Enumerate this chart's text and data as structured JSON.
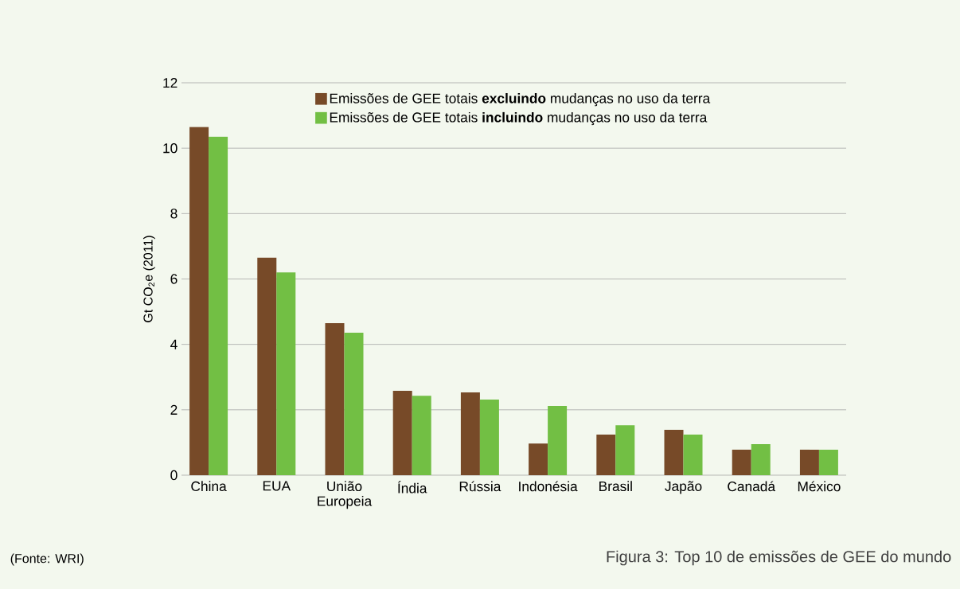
{
  "chart_data": {
    "type": "bar",
    "title": "Figura 3: Top 10 de emissões de GEE do mundo",
    "ylabel": "Gt CO$_{2}$e (2011)",
    "categories": [
      "China",
      "EUA",
      "União Europeia",
      "Índia",
      "Rússia",
      "Indonésia",
      "Brasil",
      "Japão",
      "Canadá",
      "México"
    ],
    "series": [
      {
        "name": "Emissões de GEE totais **excluindo** mudanças no uso da terra",
        "color": "#774a28",
        "values": [
          10.65,
          6.65,
          4.65,
          2.58,
          2.53,
          0.97,
          1.24,
          1.39,
          0.78,
          0.78
        ]
      },
      {
        "name": "Emissões de GEE totais **incluindo** mudanças no uso da terra",
        "color": "#72bf44",
        "values": [
          10.35,
          6.2,
          4.36,
          2.43,
          2.31,
          2.12,
          1.53,
          1.24,
          0.95,
          0.78
        ]
      }
    ],
    "ylim": [
      0,
      12
    ],
    "yticks": [
      0,
      2,
      4,
      6,
      8,
      10,
      12
    ],
    "grid": "y",
    "legend": "top",
    "annotations": [
      "(Fonte: WRI)"
    ]
  }
}
